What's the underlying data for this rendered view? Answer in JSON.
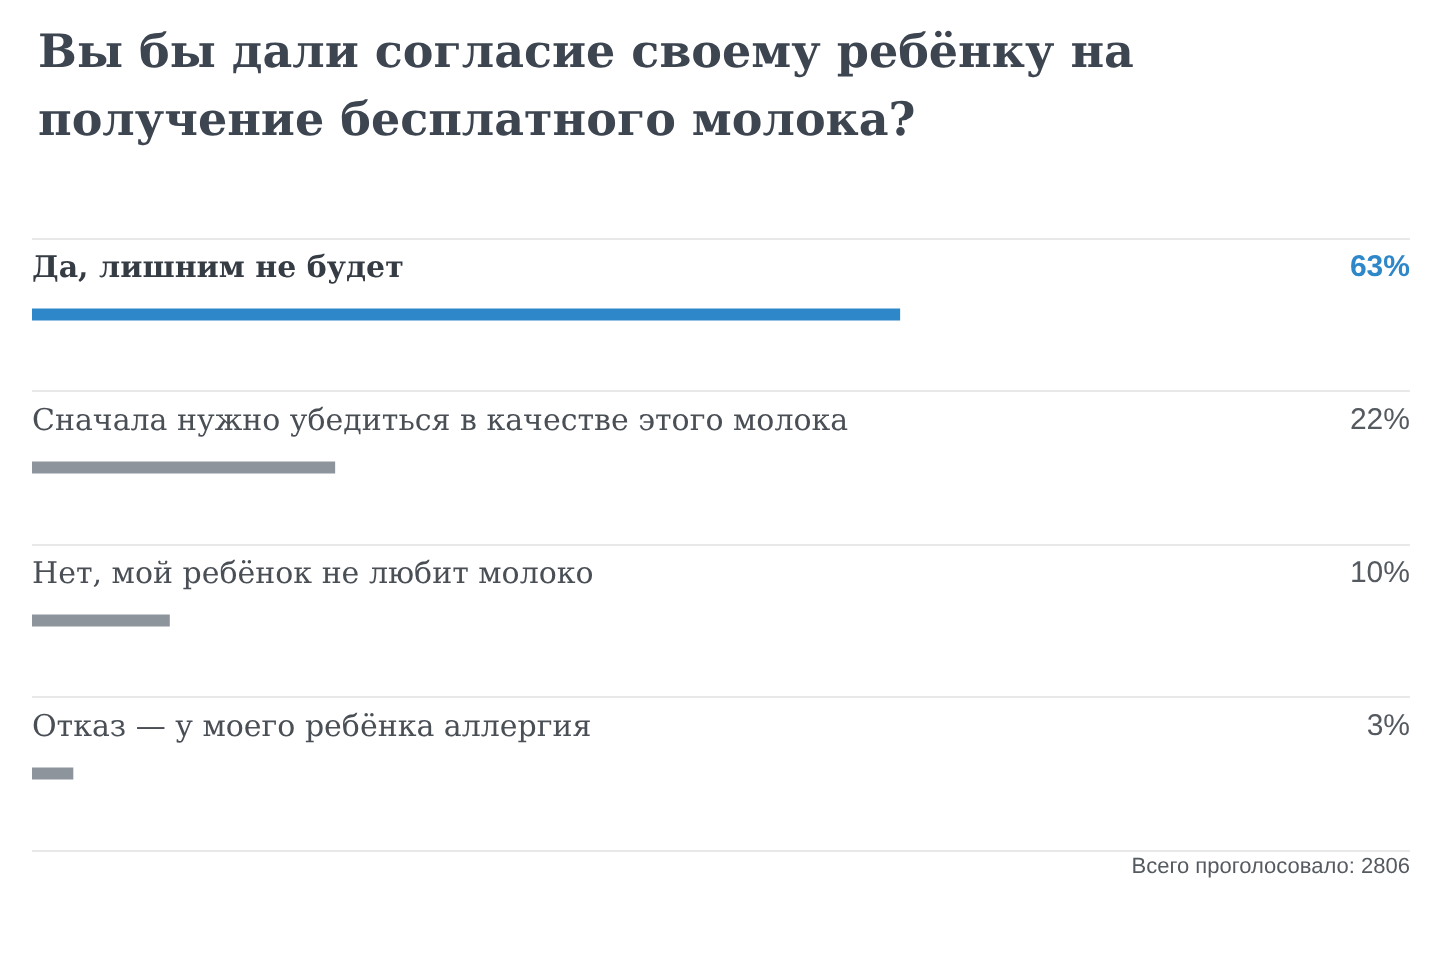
{
  "chart_data": {
    "type": "bar",
    "orientation": "horizontal",
    "title": "Вы бы дали согласие своему ребёнку на получение бесплатного молока?",
    "categories": [
      "Да, лишним не будет",
      "Сначала нужно убедиться в качестве этого молока",
      "Нет, мой ребёнок не любит молоко",
      "Отказ — у моего ребёнка аллергия"
    ],
    "values": [
      63,
      22,
      10,
      3
    ],
    "value_labels": [
      "63%",
      "22%",
      "10%",
      "3%"
    ],
    "colors": [
      "#2e87c9",
      "#8e949b",
      "#8e949b",
      "#8e949b"
    ],
    "xlim": [
      0,
      100
    ],
    "tick_labels": "y",
    "grid": "y",
    "annotations": [
      "Всего проголосовало: 2806"
    ]
  }
}
